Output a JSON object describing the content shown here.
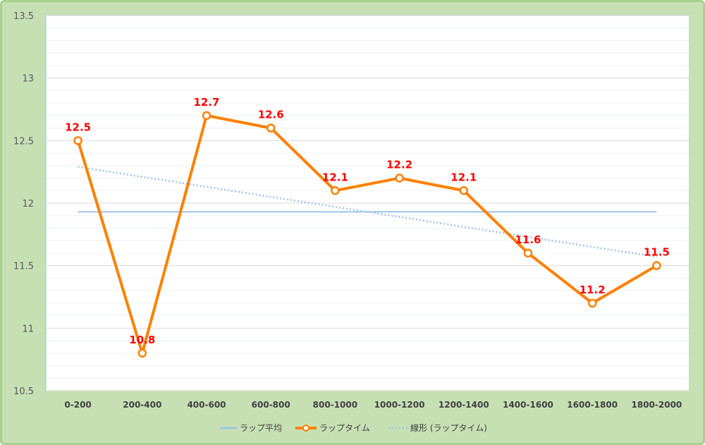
{
  "chart_data": {
    "type": "line",
    "categories": [
      "0-200",
      "200-400",
      "400-600",
      "600-800",
      "800-1000",
      "1000-1200",
      "1200-1400",
      "1400-1600",
      "1600-1800",
      "1800-2000"
    ],
    "series": [
      {
        "name": "ラップタイム",
        "values": [
          12.5,
          10.8,
          12.7,
          12.6,
          12.1,
          12.2,
          12.1,
          11.6,
          11.2,
          11.5
        ],
        "color": "#ff8000"
      },
      {
        "name": "ラップ平均",
        "values": [
          11.93,
          11.93,
          11.93,
          11.93,
          11.93,
          11.93,
          11.93,
          11.93,
          11.93,
          11.93
        ],
        "color": "#9dc3e6"
      }
    ],
    "trendline": {
      "name": "線形 (ラップタイム)",
      "start": 12.29,
      "end": 11.57,
      "color": "#9dc3e6"
    },
    "data_labels": [
      "12.5",
      "10.8",
      "12.7",
      "12.6",
      "12.1",
      "12.2",
      "12.1",
      "11.6",
      "11.2",
      "11.5"
    ],
    "ylim": [
      10.5,
      13.5
    ],
    "yticks": [
      "10.5",
      "11",
      "11.5",
      "12",
      "12.5",
      "13",
      "13.5"
    ],
    "legend": [
      "ラップ平均",
      "ラップタイム",
      "線形 (ラップタイム)"
    ],
    "legend_position": "bottom",
    "grid": true,
    "title": "",
    "xlabel": "",
    "ylabel": ""
  }
}
